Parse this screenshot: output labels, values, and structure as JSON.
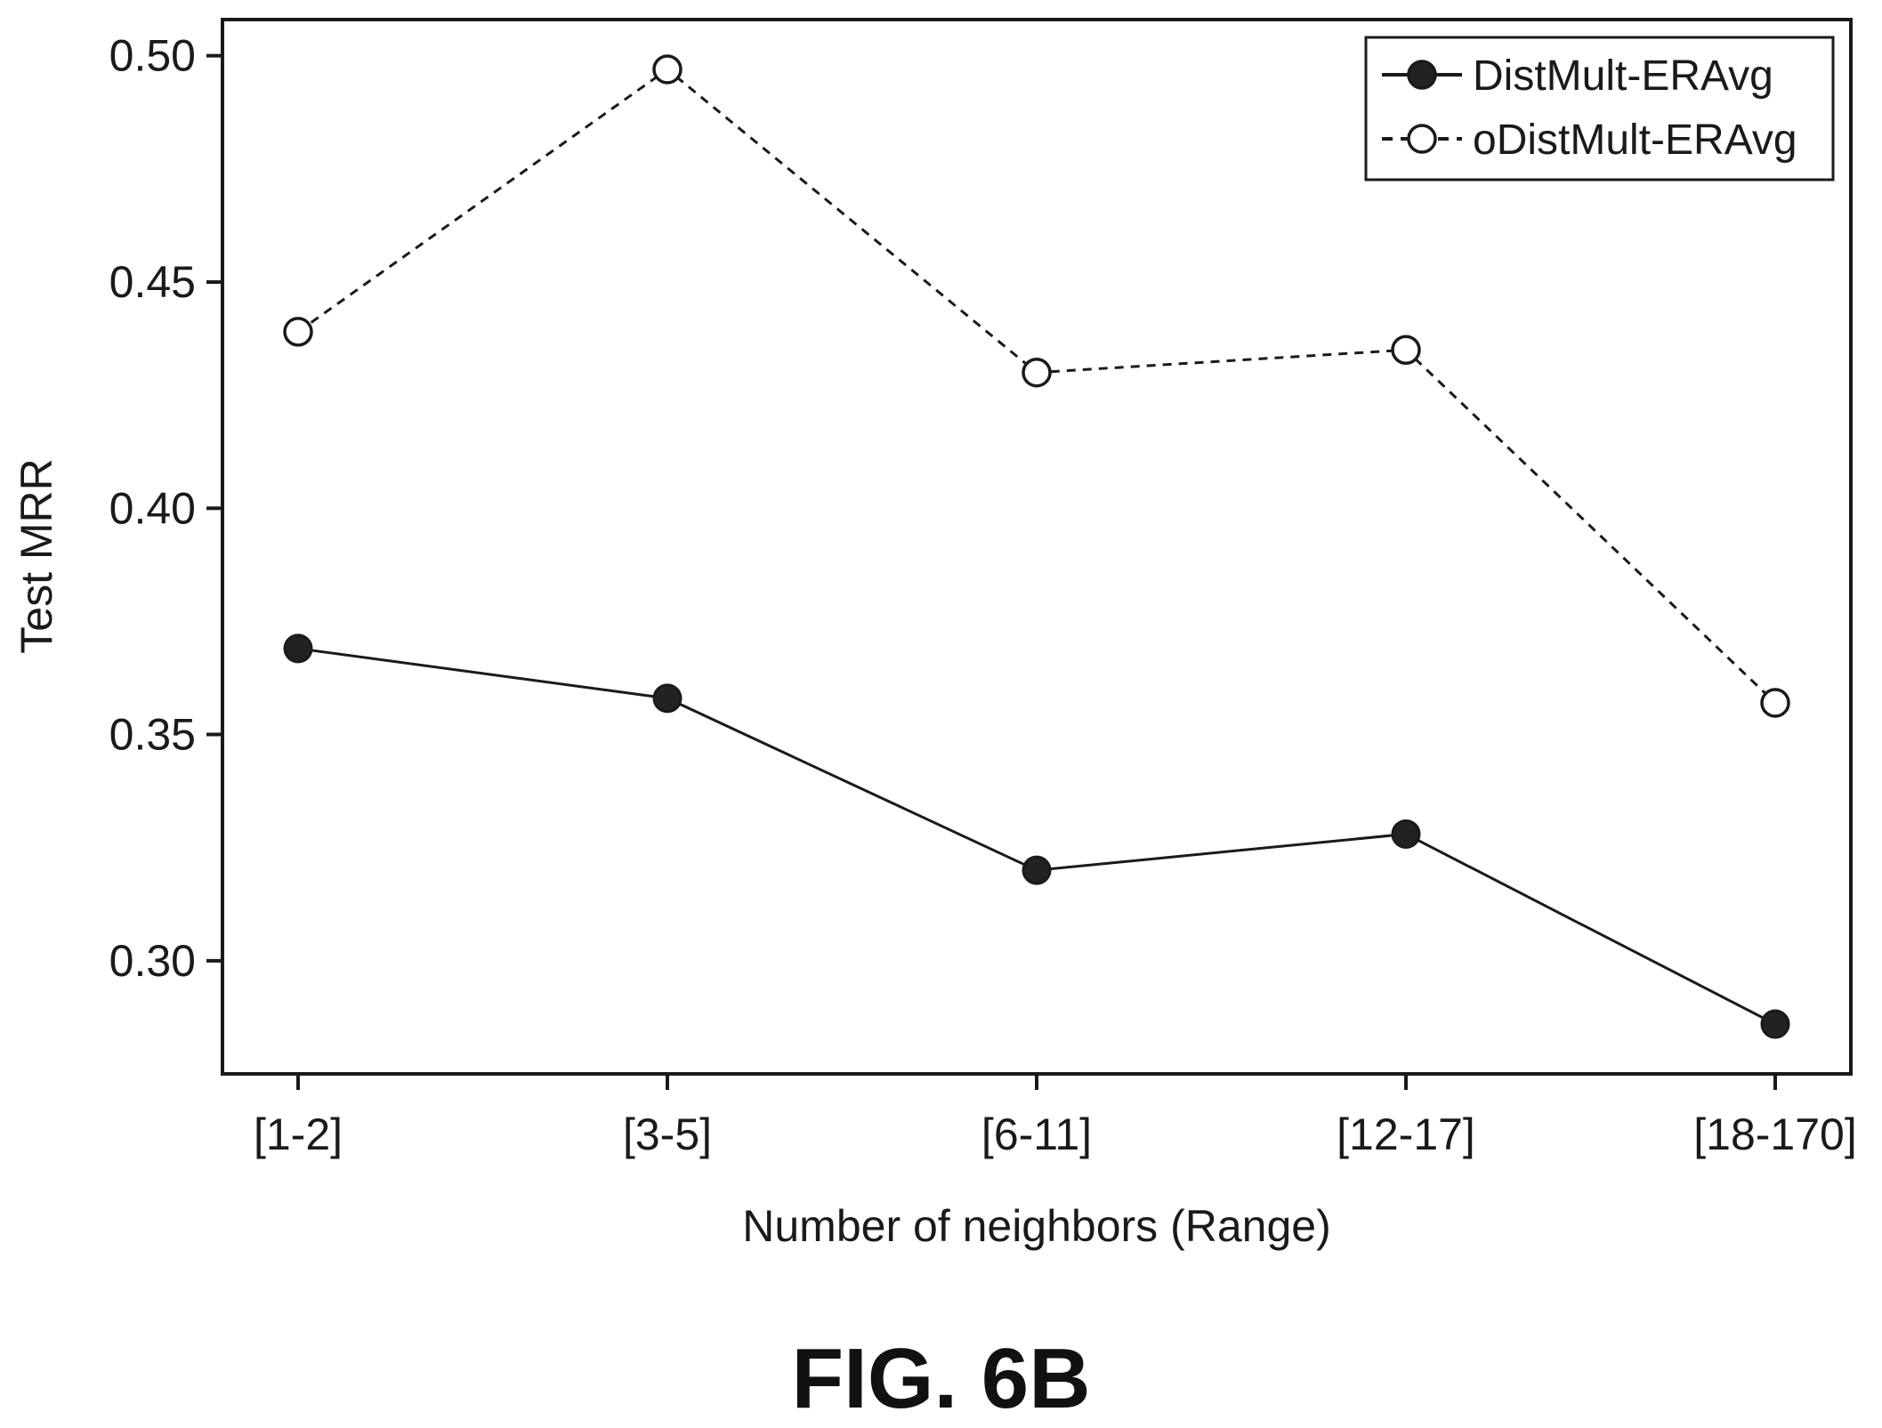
{
  "chart_data": {
    "type": "line",
    "title": "",
    "xlabel": "Number of neighbors (Range)",
    "ylabel": "Test MRR",
    "categories": [
      "[1-2]",
      "[3-5]",
      "[6-11]",
      "[12-17]",
      "[18-170]"
    ],
    "ylim": [
      0.275,
      0.508
    ],
    "yticks": [
      0.3,
      0.35,
      0.4,
      0.45,
      0.5
    ],
    "ytick_labels": [
      "0.30",
      "0.35",
      "0.40",
      "0.45",
      "0.50"
    ],
    "grid": false,
    "legend_position": "top-right",
    "series": [
      {
        "name": "DistMult-ERAvg",
        "values": [
          0.369,
          0.358,
          0.32,
          0.328,
          0.286
        ],
        "line_style": "solid",
        "marker": "filled-circle",
        "color": "#1a1a1a"
      },
      {
        "name": "oDistMult-ERAvg",
        "values": [
          0.439,
          0.497,
          0.43,
          0.435,
          0.357
        ],
        "line_style": "dashed",
        "marker": "open-circle",
        "color": "#1a1a1a"
      }
    ]
  },
  "caption": "FIG. 6B"
}
